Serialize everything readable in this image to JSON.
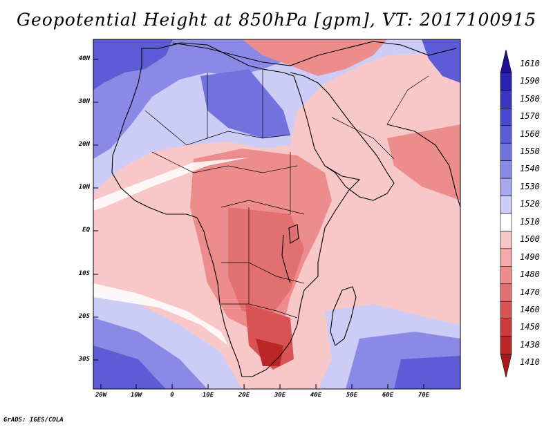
{
  "title": "Geopotential Height at 850hPa [gpm], VT: 2017100915",
  "credit": "GrADS: IGES/COLA",
  "lat_labels": [
    "40N",
    "30N",
    "20N",
    "10N",
    "EQ",
    "10S",
    "20S",
    "30S"
  ],
  "lon_labels": [
    "20W",
    "10W",
    "0",
    "10E",
    "20E",
    "30E",
    "40E",
    "50E",
    "60E",
    "70E"
  ],
  "legend": {
    "levels": [
      "1610",
      "1590",
      "1580",
      "1570",
      "1560",
      "1550",
      "1540",
      "1530",
      "1520",
      "1510",
      "1500",
      "1490",
      "1480",
      "1470",
      "1460",
      "1450",
      "1430",
      "1410"
    ],
    "colors": [
      "#1f0f96",
      "#2a22b0",
      "#3a34c0",
      "#4a48cc",
      "#5c5cd6",
      "#7272df",
      "#8a8ae6",
      "#a8a8ee",
      "#ccccf6",
      "#ffffff",
      "#f8c8c8",
      "#f4aaaa",
      "#ec8c8c",
      "#e27070",
      "#d85454",
      "#cc3c3c",
      "#bb2626",
      "#aa1818"
    ]
  },
  "colors": {
    "blue_strong": "#5c5cd6",
    "blue_mid": "#8a8ae6",
    "blue_light": "#ccccf6",
    "red_light": "#f8c8c8",
    "red_mid": "#ec8c8c",
    "red_strong": "#d85454",
    "red_dark": "#bb2626"
  }
}
